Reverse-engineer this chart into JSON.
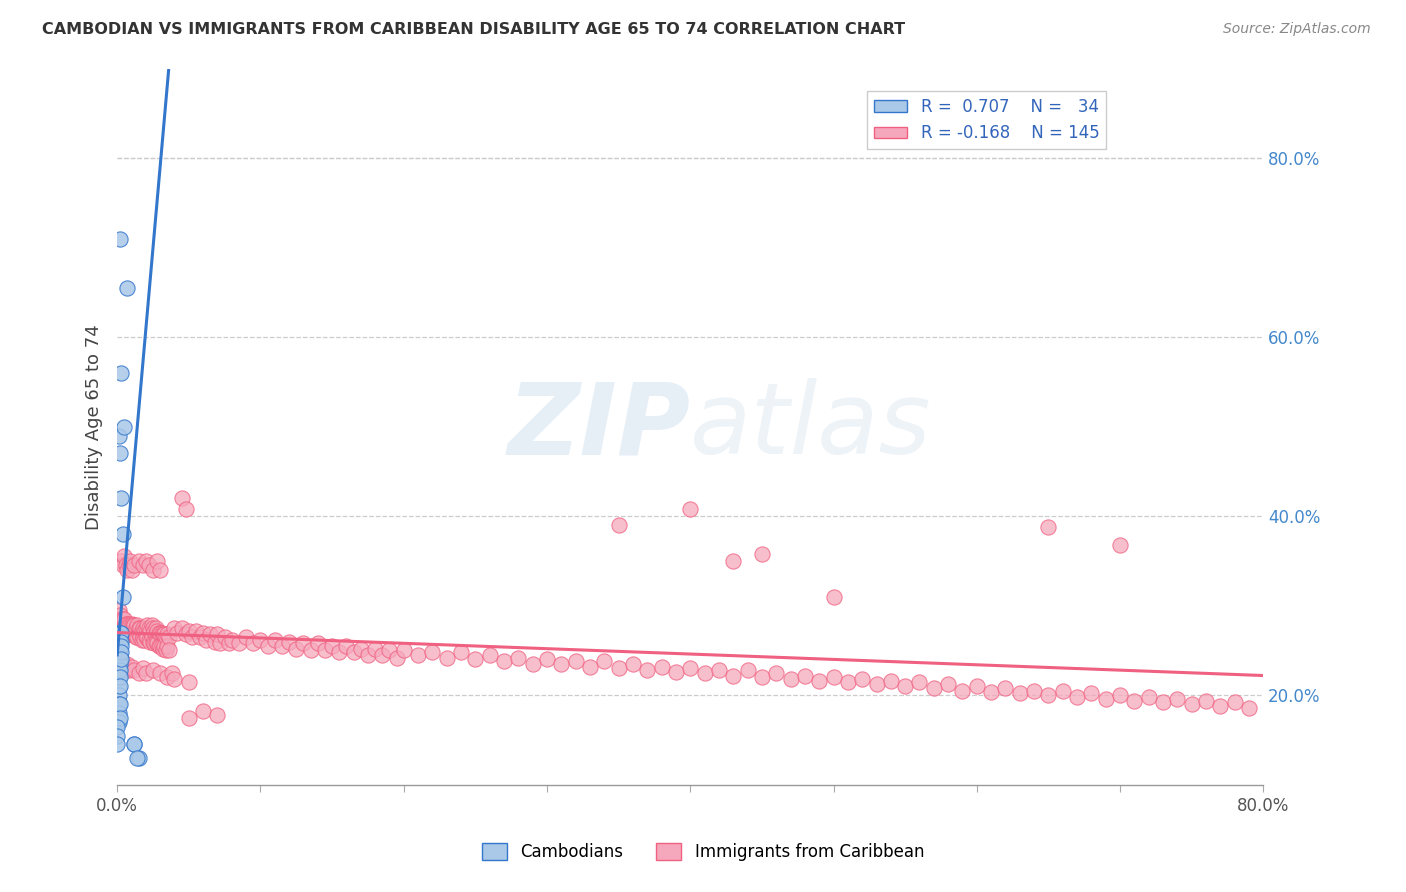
{
  "title": "CAMBODIAN VS IMMIGRANTS FROM CARIBBEAN DISABILITY AGE 65 TO 74 CORRELATION CHART",
  "source": "Source: ZipAtlas.com",
  "ylabel": "Disability Age 65 to 74",
  "right_yticks": [
    0.2,
    0.4,
    0.6,
    0.8
  ],
  "right_ytick_labels": [
    "20.0%",
    "40.0%",
    "60.0%",
    "80.0%"
  ],
  "color_cambodian": "#aac8e8",
  "color_caribbean": "#f5a8bc",
  "color_cambodian_line": "#3377cc",
  "color_caribbean_line": "#f06080",
  "watermark": "ZIPAtlas",
  "cambodian_points": [
    [
      0.0,
      0.27
    ],
    [
      0.001,
      0.27
    ],
    [
      0.001,
      0.265
    ],
    [
      0.001,
      0.26
    ],
    [
      0.001,
      0.255
    ],
    [
      0.001,
      0.25
    ],
    [
      0.001,
      0.245
    ],
    [
      0.001,
      0.24
    ],
    [
      0.001,
      0.235
    ],
    [
      0.001,
      0.23
    ],
    [
      0.001,
      0.22
    ],
    [
      0.001,
      0.21
    ],
    [
      0.001,
      0.2
    ],
    [
      0.001,
      0.19
    ],
    [
      0.001,
      0.18
    ],
    [
      0.001,
      0.17
    ],
    [
      0.002,
      0.27
    ],
    [
      0.002,
      0.265
    ],
    [
      0.002,
      0.258
    ],
    [
      0.002,
      0.25
    ],
    [
      0.002,
      0.245
    ],
    [
      0.002,
      0.24
    ],
    [
      0.002,
      0.235
    ],
    [
      0.002,
      0.228
    ],
    [
      0.002,
      0.22
    ],
    [
      0.002,
      0.21
    ],
    [
      0.002,
      0.19
    ],
    [
      0.002,
      0.175
    ],
    [
      0.003,
      0.27
    ],
    [
      0.003,
      0.26
    ],
    [
      0.003,
      0.255
    ],
    [
      0.003,
      0.248
    ],
    [
      0.003,
      0.24
    ],
    [
      0.012,
      0.145
    ],
    [
      0.015,
      0.13
    ],
    [
      0.001,
      0.49
    ],
    [
      0.002,
      0.47
    ],
    [
      0.003,
      0.42
    ],
    [
      0.004,
      0.38
    ],
    [
      0.005,
      0.5
    ],
    [
      0.004,
      0.31
    ],
    [
      0.003,
      0.56
    ],
    [
      0.007,
      0.655
    ],
    [
      0.002,
      0.71
    ],
    [
      0.0,
      0.165
    ],
    [
      0.0,
      0.155
    ],
    [
      0.0,
      0.145
    ],
    [
      0.012,
      0.145
    ],
    [
      0.014,
      0.13
    ]
  ],
  "caribbean_points": [
    [
      0.001,
      0.295
    ],
    [
      0.002,
      0.29
    ],
    [
      0.002,
      0.28
    ],
    [
      0.003,
      0.285
    ],
    [
      0.003,
      0.275
    ],
    [
      0.004,
      0.285
    ],
    [
      0.004,
      0.27
    ],
    [
      0.005,
      0.285
    ],
    [
      0.005,
      0.275
    ],
    [
      0.006,
      0.28
    ],
    [
      0.006,
      0.268
    ],
    [
      0.007,
      0.28
    ],
    [
      0.007,
      0.268
    ],
    [
      0.008,
      0.28
    ],
    [
      0.008,
      0.27
    ],
    [
      0.009,
      0.278
    ],
    [
      0.009,
      0.268
    ],
    [
      0.01,
      0.28
    ],
    [
      0.01,
      0.268
    ],
    [
      0.011,
      0.278
    ],
    [
      0.011,
      0.27
    ],
    [
      0.012,
      0.278
    ],
    [
      0.012,
      0.268
    ],
    [
      0.013,
      0.275
    ],
    [
      0.013,
      0.265
    ],
    [
      0.014,
      0.278
    ],
    [
      0.014,
      0.265
    ],
    [
      0.015,
      0.275
    ],
    [
      0.015,
      0.268
    ],
    [
      0.016,
      0.275
    ],
    [
      0.016,
      0.265
    ],
    [
      0.017,
      0.272
    ],
    [
      0.017,
      0.262
    ],
    [
      0.018,
      0.275
    ],
    [
      0.018,
      0.265
    ],
    [
      0.019,
      0.272
    ],
    [
      0.019,
      0.262
    ],
    [
      0.02,
      0.275
    ],
    [
      0.02,
      0.265
    ],
    [
      0.021,
      0.278
    ],
    [
      0.021,
      0.265
    ],
    [
      0.022,
      0.275
    ],
    [
      0.022,
      0.262
    ],
    [
      0.023,
      0.272
    ],
    [
      0.023,
      0.26
    ],
    [
      0.024,
      0.278
    ],
    [
      0.024,
      0.265
    ],
    [
      0.025,
      0.275
    ],
    [
      0.025,
      0.26
    ],
    [
      0.026,
      0.272
    ],
    [
      0.026,
      0.258
    ],
    [
      0.027,
      0.275
    ],
    [
      0.027,
      0.26
    ],
    [
      0.028,
      0.272
    ],
    [
      0.028,
      0.258
    ],
    [
      0.029,
      0.27
    ],
    [
      0.029,
      0.255
    ],
    [
      0.03,
      0.27
    ],
    [
      0.03,
      0.255
    ],
    [
      0.031,
      0.27
    ],
    [
      0.031,
      0.255
    ],
    [
      0.032,
      0.268
    ],
    [
      0.032,
      0.252
    ],
    [
      0.033,
      0.268
    ],
    [
      0.033,
      0.255
    ],
    [
      0.034,
      0.265
    ],
    [
      0.034,
      0.25
    ],
    [
      0.035,
      0.268
    ],
    [
      0.035,
      0.255
    ],
    [
      0.036,
      0.265
    ],
    [
      0.036,
      0.25
    ],
    [
      0.003,
      0.35
    ],
    [
      0.004,
      0.345
    ],
    [
      0.005,
      0.355
    ],
    [
      0.006,
      0.345
    ],
    [
      0.007,
      0.34
    ],
    [
      0.008,
      0.345
    ],
    [
      0.009,
      0.35
    ],
    [
      0.01,
      0.34
    ],
    [
      0.012,
      0.345
    ],
    [
      0.015,
      0.35
    ],
    [
      0.018,
      0.345
    ],
    [
      0.02,
      0.35
    ],
    [
      0.022,
      0.345
    ],
    [
      0.025,
      0.34
    ],
    [
      0.028,
      0.35
    ],
    [
      0.03,
      0.34
    ],
    [
      0.003,
      0.23
    ],
    [
      0.005,
      0.235
    ],
    [
      0.006,
      0.228
    ],
    [
      0.007,
      0.235
    ],
    [
      0.008,
      0.228
    ],
    [
      0.01,
      0.232
    ],
    [
      0.012,
      0.228
    ],
    [
      0.015,
      0.225
    ],
    [
      0.018,
      0.23
    ],
    [
      0.02,
      0.225
    ],
    [
      0.025,
      0.228
    ],
    [
      0.03,
      0.225
    ],
    [
      0.035,
      0.22
    ],
    [
      0.038,
      0.225
    ],
    [
      0.04,
      0.218
    ],
    [
      0.05,
      0.215
    ],
    [
      0.04,
      0.275
    ],
    [
      0.042,
      0.27
    ],
    [
      0.045,
      0.275
    ],
    [
      0.048,
      0.268
    ],
    [
      0.05,
      0.272
    ],
    [
      0.052,
      0.265
    ],
    [
      0.055,
      0.272
    ],
    [
      0.058,
      0.265
    ],
    [
      0.06,
      0.27
    ],
    [
      0.062,
      0.262
    ],
    [
      0.065,
      0.268
    ],
    [
      0.068,
      0.26
    ],
    [
      0.07,
      0.268
    ],
    [
      0.072,
      0.258
    ],
    [
      0.075,
      0.265
    ],
    [
      0.078,
      0.258
    ],
    [
      0.08,
      0.262
    ],
    [
      0.085,
      0.258
    ],
    [
      0.09,
      0.265
    ],
    [
      0.095,
      0.258
    ],
    [
      0.1,
      0.262
    ],
    [
      0.105,
      0.255
    ],
    [
      0.11,
      0.262
    ],
    [
      0.115,
      0.255
    ],
    [
      0.12,
      0.26
    ],
    [
      0.125,
      0.252
    ],
    [
      0.13,
      0.258
    ],
    [
      0.135,
      0.25
    ],
    [
      0.14,
      0.258
    ],
    [
      0.145,
      0.25
    ],
    [
      0.15,
      0.255
    ],
    [
      0.155,
      0.248
    ],
    [
      0.16,
      0.255
    ],
    [
      0.165,
      0.248
    ],
    [
      0.17,
      0.252
    ],
    [
      0.175,
      0.245
    ],
    [
      0.18,
      0.252
    ],
    [
      0.185,
      0.245
    ],
    [
      0.19,
      0.25
    ],
    [
      0.195,
      0.242
    ],
    [
      0.2,
      0.25
    ],
    [
      0.21,
      0.245
    ],
    [
      0.22,
      0.248
    ],
    [
      0.23,
      0.242
    ],
    [
      0.24,
      0.248
    ],
    [
      0.25,
      0.24
    ],
    [
      0.26,
      0.245
    ],
    [
      0.27,
      0.238
    ],
    [
      0.28,
      0.242
    ],
    [
      0.29,
      0.235
    ],
    [
      0.3,
      0.24
    ],
    [
      0.31,
      0.235
    ],
    [
      0.32,
      0.238
    ],
    [
      0.33,
      0.232
    ],
    [
      0.34,
      0.238
    ],
    [
      0.35,
      0.23
    ],
    [
      0.36,
      0.235
    ],
    [
      0.37,
      0.228
    ],
    [
      0.38,
      0.232
    ],
    [
      0.39,
      0.226
    ],
    [
      0.4,
      0.23
    ],
    [
      0.41,
      0.225
    ],
    [
      0.42,
      0.228
    ],
    [
      0.43,
      0.222
    ],
    [
      0.44,
      0.228
    ],
    [
      0.45,
      0.22
    ],
    [
      0.46,
      0.225
    ],
    [
      0.47,
      0.218
    ],
    [
      0.48,
      0.222
    ],
    [
      0.49,
      0.216
    ],
    [
      0.5,
      0.22
    ],
    [
      0.51,
      0.215
    ],
    [
      0.52,
      0.218
    ],
    [
      0.53,
      0.212
    ],
    [
      0.54,
      0.216
    ],
    [
      0.55,
      0.21
    ],
    [
      0.56,
      0.215
    ],
    [
      0.57,
      0.208
    ],
    [
      0.58,
      0.212
    ],
    [
      0.59,
      0.205
    ],
    [
      0.6,
      0.21
    ],
    [
      0.61,
      0.204
    ],
    [
      0.62,
      0.208
    ],
    [
      0.63,
      0.202
    ],
    [
      0.64,
      0.205
    ],
    [
      0.65,
      0.2
    ],
    [
      0.66,
      0.205
    ],
    [
      0.67,
      0.198
    ],
    [
      0.68,
      0.202
    ],
    [
      0.69,
      0.196
    ],
    [
      0.7,
      0.2
    ],
    [
      0.71,
      0.194
    ],
    [
      0.72,
      0.198
    ],
    [
      0.73,
      0.192
    ],
    [
      0.74,
      0.196
    ],
    [
      0.75,
      0.19
    ],
    [
      0.76,
      0.194
    ],
    [
      0.77,
      0.188
    ],
    [
      0.78,
      0.192
    ],
    [
      0.79,
      0.186
    ],
    [
      0.35,
      0.39
    ],
    [
      0.4,
      0.408
    ],
    [
      0.43,
      0.35
    ],
    [
      0.65,
      0.388
    ],
    [
      0.7,
      0.368
    ],
    [
      0.5,
      0.31
    ],
    [
      0.045,
      0.42
    ],
    [
      0.048,
      0.408
    ],
    [
      0.05,
      0.175
    ],
    [
      0.06,
      0.182
    ],
    [
      0.07,
      0.178
    ],
    [
      0.45,
      0.358
    ]
  ],
  "xlim": [
    0.0,
    0.8
  ],
  "ylim": [
    0.1,
    0.9
  ],
  "cam_trend_x": [
    0.0,
    0.036
  ],
  "cam_trend_y": [
    0.245,
    0.9
  ],
  "car_trend_x": [
    0.0,
    0.8
  ],
  "car_trend_y": [
    0.27,
    0.222
  ],
  "xtick_vals": [
    0.0,
    0.1,
    0.2,
    0.3,
    0.4,
    0.5,
    0.6,
    0.7,
    0.8
  ],
  "background_color": "#ffffff"
}
